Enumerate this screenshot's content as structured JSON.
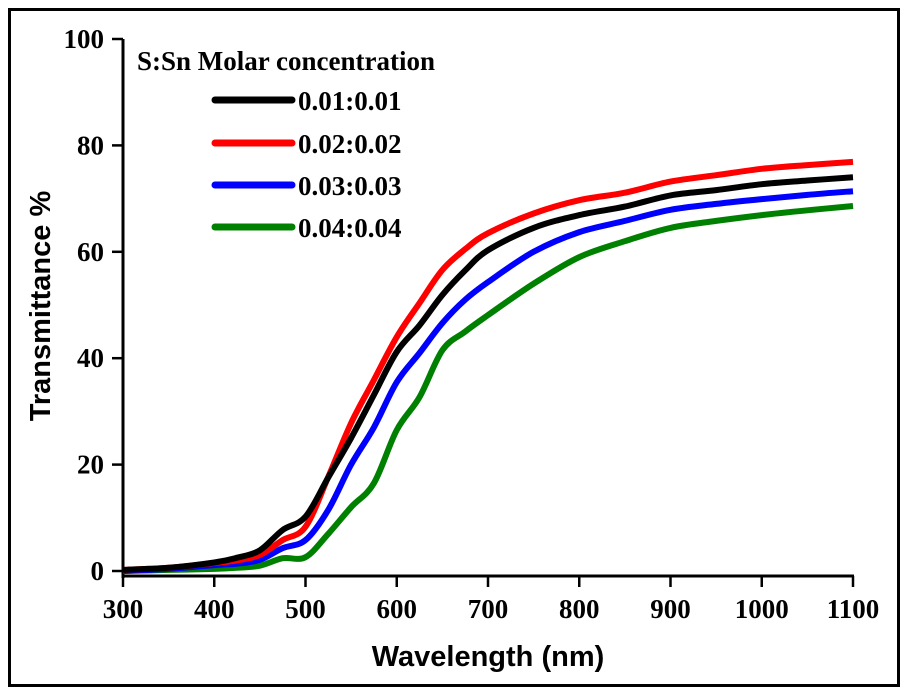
{
  "chart_data": {
    "type": "line",
    "title": "",
    "xlabel": "Wavelength (nm)",
    "ylabel": "Transmittance %",
    "xlim": [
      300,
      1100
    ],
    "ylim": [
      0,
      100
    ],
    "xticks": [
      "300",
      "400",
      "500",
      "600",
      "700",
      "800",
      "900",
      "1000",
      "1100"
    ],
    "yticks": [
      "0",
      "20",
      "40",
      "60",
      "80",
      "100"
    ],
    "grid": false,
    "legend": {
      "title": "S:Sn Molar concentration",
      "placement": "top-left"
    },
    "x": [
      300,
      350,
      400,
      425,
      450,
      475,
      500,
      525,
      550,
      575,
      600,
      625,
      650,
      675,
      700,
      750,
      800,
      850,
      900,
      950,
      1000,
      1050,
      1100
    ],
    "series": [
      {
        "name": "0.01:0.01",
        "color": "#000000",
        "values": [
          0.2,
          0.6,
          1.6,
          2.5,
          3.9,
          7.7,
          10.2,
          17.6,
          25.0,
          33.1,
          41.2,
          46.2,
          51.9,
          56.5,
          60.3,
          64.5,
          66.9,
          68.5,
          70.6,
          71.6,
          72.7,
          73.4,
          74.0
        ]
      },
      {
        "name": "0.02:0.02",
        "color": "#ff0000",
        "values": [
          0.2,
          0.6,
          1.5,
          2.0,
          3.0,
          5.8,
          8.3,
          17.7,
          27.8,
          35.9,
          44.0,
          50.4,
          56.6,
          60.5,
          63.5,
          67.2,
          69.7,
          71.1,
          73.2,
          74.4,
          75.6,
          76.3,
          76.9
        ]
      },
      {
        "name": "0.03:0.03",
        "color": "#0000ff",
        "values": [
          0.0,
          0.4,
          1.1,
          1.4,
          2.1,
          4.3,
          5.8,
          11.5,
          20.0,
          27.0,
          35.5,
          41.0,
          46.6,
          51.0,
          54.3,
          60.0,
          63.7,
          65.8,
          67.9,
          69.0,
          69.9,
          70.7,
          71.4
        ]
      },
      {
        "name": "0.04:0.04",
        "color": "#008000",
        "values": [
          0.0,
          0.2,
          0.4,
          0.6,
          1.0,
          2.4,
          2.6,
          7.0,
          12.0,
          16.5,
          26.5,
          32.7,
          41.5,
          45.0,
          48.1,
          54.0,
          59.0,
          62.0,
          64.5,
          65.8,
          66.9,
          67.8,
          68.6
        ]
      }
    ]
  }
}
